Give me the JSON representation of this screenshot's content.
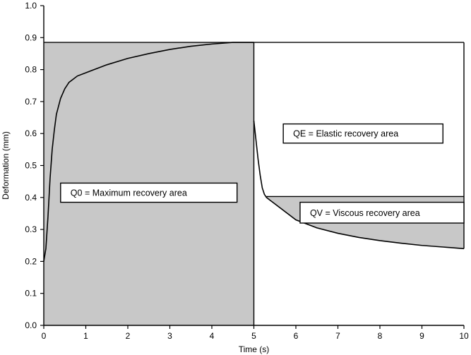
{
  "chart_data": {
    "type": "area",
    "title": "",
    "xlabel": "Time (s)",
    "ylabel": "Deformation (mm)",
    "xlim": [
      0,
      10
    ],
    "ylim": [
      0,
      1.0
    ],
    "x_ticks": [
      0,
      1,
      2,
      3,
      4,
      5,
      6,
      7,
      8,
      9,
      10
    ],
    "y_ticks": [
      0.0,
      0.1,
      0.2,
      0.3,
      0.4,
      0.5,
      0.6,
      0.7,
      0.8,
      0.9,
      1.0
    ],
    "x_tick_labels": [
      "0",
      "1",
      "2",
      "3",
      "4",
      "5",
      "6",
      "7",
      "8",
      "9",
      "10"
    ],
    "y_tick_labels": [
      "0.0",
      "0.1",
      "0.2",
      "0.3",
      "0.4",
      "0.5",
      "0.6",
      "0.7",
      "0.8",
      "0.9",
      "1.0"
    ],
    "grid": false,
    "series": [
      {
        "points": [
          [
            0,
            0.2
          ],
          [
            0.05,
            0.24
          ],
          [
            0.1,
            0.34
          ],
          [
            0.15,
            0.46
          ],
          [
            0.2,
            0.55
          ],
          [
            0.25,
            0.61
          ],
          [
            0.3,
            0.66
          ],
          [
            0.4,
            0.71
          ],
          [
            0.5,
            0.74
          ],
          [
            0.6,
            0.76
          ],
          [
            0.8,
            0.78
          ],
          [
            1.0,
            0.79
          ],
          [
            1.5,
            0.815
          ],
          [
            2.0,
            0.835
          ],
          [
            2.5,
            0.85
          ],
          [
            3.0,
            0.863
          ],
          [
            3.5,
            0.873
          ],
          [
            4.0,
            0.88
          ],
          [
            4.5,
            0.885
          ],
          [
            5.0,
            0.885
          ],
          [
            5.0,
            0.64
          ],
          [
            5.05,
            0.58
          ],
          [
            5.1,
            0.52
          ],
          [
            5.15,
            0.47
          ],
          [
            5.2,
            0.43
          ],
          [
            5.25,
            0.41
          ],
          [
            5.3,
            0.4
          ],
          [
            5.5,
            0.38
          ],
          [
            6.0,
            0.33
          ],
          [
            6.5,
            0.305
          ],
          [
            7.0,
            0.288
          ],
          [
            7.5,
            0.275
          ],
          [
            8.0,
            0.265
          ],
          [
            8.5,
            0.257
          ],
          [
            9.0,
            0.25
          ],
          [
            9.5,
            0.245
          ],
          [
            10.0,
            0.24
          ]
        ]
      }
    ],
    "regions": [
      {
        "label": "Q0 = Maximum recovery area",
        "x_range": [
          0,
          5
        ],
        "y_top": 0.885,
        "fill": "#c8c8c8"
      },
      {
        "label": "QE = Elastic recovery area",
        "fill": "#ffffff"
      },
      {
        "label": "QV = Viscous recovery area",
        "y_top": 0.403,
        "fill": "#c8c8c8"
      }
    ],
    "reference_lines": [
      {
        "orientation": "horizontal",
        "y": 0.885,
        "x_range": [
          0,
          10
        ]
      },
      {
        "orientation": "vertical",
        "x": 5,
        "y_range": [
          0,
          0.885
        ]
      },
      {
        "orientation": "vertical",
        "x": 10,
        "y_range": [
          0.24,
          0.885
        ]
      },
      {
        "orientation": "horizontal",
        "y": 0.403,
        "x_range": [
          5.3,
          10
        ]
      }
    ],
    "annotations": [
      {
        "id": "q0",
        "text": "Q0 = Maximum recovery area",
        "x_range": [
          0.4,
          4.6
        ],
        "y_range": [
          0.385,
          0.445
        ]
      },
      {
        "id": "qe",
        "text": "QE = Elastic recovery area",
        "x_range": [
          5.7,
          9.5
        ],
        "y_range": [
          0.57,
          0.63
        ]
      },
      {
        "id": "qv",
        "text": "QV = Viscous recovery area",
        "x_range": [
          6.1,
          10
        ],
        "y_range": [
          0.32,
          0.385
        ]
      }
    ],
    "colors": {
      "shade": "#c8c8c8",
      "line": "#000000",
      "box_fill": "#ffffff"
    }
  }
}
